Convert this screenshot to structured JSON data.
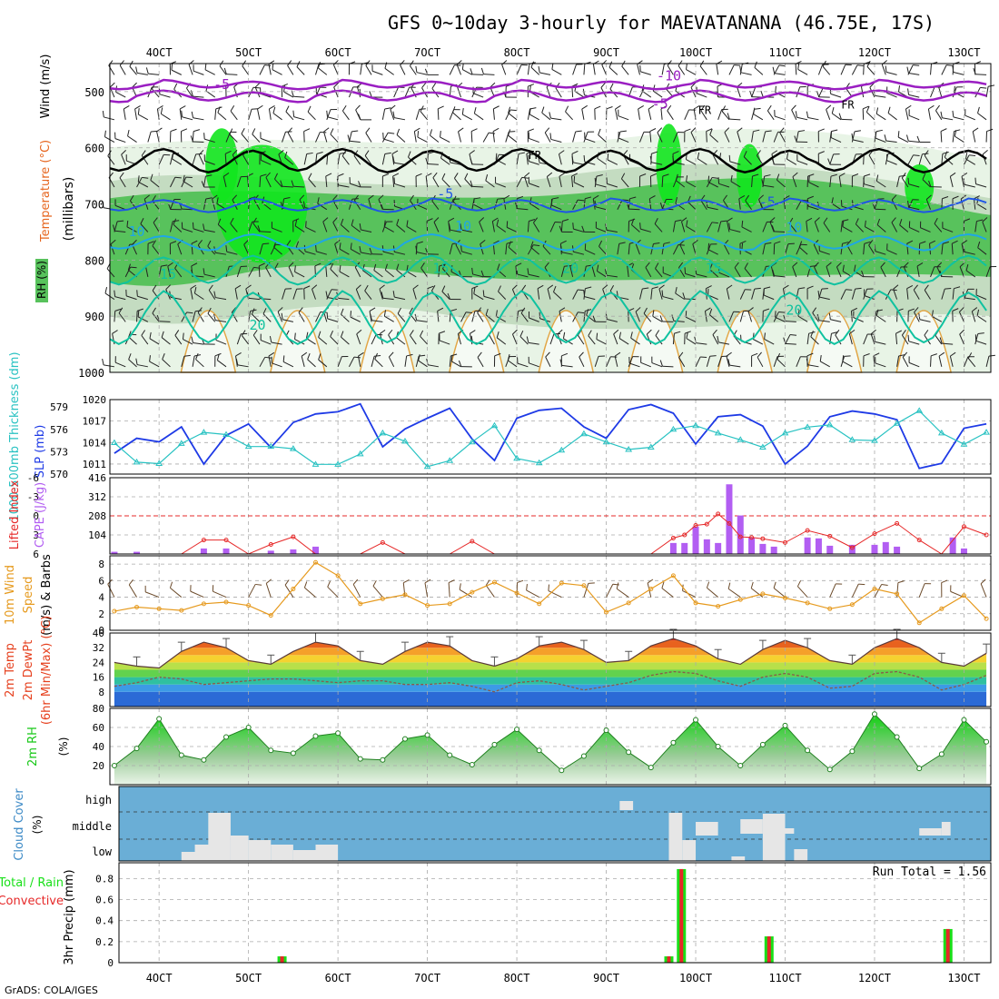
{
  "title": "GFS 0~10day 3-hourly for MAEVATANANA (46.75E, 17S)",
  "credit": "GrADS: COLA/IGES",
  "time_axis": {
    "labels": [
      "4OCT",
      "5OCT",
      "6OCT",
      "7OCT",
      "8OCT",
      "9OCT",
      "10OCT",
      "11OCT",
      "12OCT",
      "13OCT"
    ],
    "range_days": [
      3.45,
      13.3
    ]
  },
  "colors": {
    "rh_light": "#e8f4e6",
    "rh_mid": "#c4dcc1",
    "rh_gray": "#a9c0a6",
    "rh_green": "#58c25c",
    "rh_bright": "#12e61e",
    "temp_cold": "#9a1ec2",
    "temp_cool": "#1e55e6",
    "temp_mild": "#1ea7e6",
    "temp_warm": "#10c2a0",
    "temp_hot": "#e69a1e",
    "slp": "#1e3ae6",
    "thickness": "#28c2c2",
    "cape": "#b25ef2",
    "lifted_index": "#e62828",
    "wind10m": "#e69a1e",
    "rh2m": "#18c818",
    "cloud_bg": "#6aaed6",
    "cloud_fill": "#e6e6e6",
    "precip_total": "#18e018",
    "precip_conv": "#e62828"
  },
  "chart_data": [
    {
      "type": "heatmap",
      "id": "upper_air",
      "ylabel": "(millibars)",
      "ylabels": [
        "Wind (m/s)",
        "Temperature (°C)",
        "RH (%)"
      ],
      "y_ticks": [
        500,
        600,
        700,
        800,
        900,
        1000
      ],
      "ylim": [
        1000,
        450
      ],
      "isotherm_labels": [
        "-10",
        "-5",
        "0",
        "5",
        "10",
        "15",
        "20"
      ],
      "freezing_label": "FR",
      "rh_labels": [
        "10",
        "30",
        "50"
      ]
    },
    {
      "type": "line",
      "id": "slp_thickness",
      "ylabels": [
        "1000-500mb Thickness (dm)",
        "SLP (mb)"
      ],
      "y_ticks_left": [
        570,
        573,
        576,
        579
      ],
      "y_ticks_right": [
        1011,
        1014,
        1017,
        1020
      ],
      "ylim_left": [
        570,
        580
      ],
      "ylim_right": [
        1009.6,
        1020
      ],
      "series": [
        {
          "name": "SLP (mb)",
          "axis": "right",
          "x": [
            3.5,
            3.75,
            4.0,
            4.25,
            4.5,
            4.75,
            5.0,
            5.25,
            5.5,
            5.75,
            6.0,
            6.25,
            6.5,
            6.75,
            7.0,
            7.25,
            7.5,
            7.75,
            8.0,
            8.25,
            8.5,
            8.75,
            9.0,
            9.25,
            9.5,
            9.75,
            10.0,
            10.25,
            10.5,
            10.75,
            11.0,
            11.25,
            11.5,
            11.75,
            12.0,
            12.25,
            12.5,
            12.75,
            13.0,
            13.25
          ],
          "values": [
            1012.5,
            1014.6,
            1014.1,
            1016.2,
            1011.0,
            1015.0,
            1016.6,
            1013.3,
            1016.8,
            1018.0,
            1018.3,
            1019.4,
            1013.4,
            1015.9,
            1017.4,
            1018.8,
            1014.5,
            1011.5,
            1017.4,
            1018.5,
            1018.8,
            1016.2,
            1014.6,
            1018.6,
            1019.3,
            1018.1,
            1013.8,
            1017.6,
            1017.9,
            1016.3,
            1011.0,
            1013.5,
            1017.6,
            1018.4,
            1018.0,
            1017.2,
            1010.4,
            1011.1,
            1016.0,
            1016.6
          ]
        },
        {
          "name": "1000-500mb Thickness (dm)",
          "axis": "left",
          "x": [
            3.5,
            3.75,
            4.0,
            4.25,
            4.5,
            4.75,
            5.0,
            5.25,
            5.5,
            5.75,
            6.0,
            6.25,
            6.5,
            6.75,
            7.0,
            7.25,
            7.5,
            7.75,
            8.0,
            8.25,
            8.5,
            8.75,
            9.0,
            9.25,
            9.5,
            9.75,
            10.0,
            10.25,
            10.5,
            10.75,
            11.0,
            11.25,
            11.5,
            11.75,
            12.0,
            12.25,
            12.5,
            12.75,
            13.0,
            13.25
          ],
          "values": [
            574.2,
            571.6,
            571.4,
            574.1,
            575.6,
            575.3,
            573.7,
            573.7,
            573.4,
            571.3,
            571.3,
            572.7,
            575.5,
            574.4,
            571.0,
            571.8,
            574.3,
            576.5,
            572.1,
            571.5,
            573.2,
            575.4,
            574.3,
            573.3,
            573.6,
            576.0,
            576.5,
            575.5,
            574.6,
            573.6,
            575.5,
            576.3,
            576.6,
            574.6,
            574.5,
            576.8,
            578.5,
            575.5,
            574.0,
            575.6
          ]
        }
      ]
    },
    {
      "type": "bar",
      "id": "cape_li",
      "ylabels": [
        "Lifted Index",
        "CAPE (J/kg)"
      ],
      "y_ticks_left": [
        -6,
        -3,
        0,
        3,
        6
      ],
      "y_tick_labels_left": [
        "-6",
        "-3",
        "0",
        "3",
        "6"
      ],
      "y_ticks_right": [
        104,
        208,
        312,
        416
      ],
      "ylim_cape": [
        0,
        416
      ],
      "ylim_li": [
        6,
        -6
      ],
      "series": [
        {
          "name": "CAPE (J/kg)",
          "x": [
            3.5,
            3.75,
            4.5,
            4.75,
            5.25,
            5.5,
            5.75,
            9.75,
            9.875,
            10.0,
            10.125,
            10.25,
            10.375,
            10.5,
            10.625,
            10.75,
            10.875,
            11.25,
            11.375,
            11.5,
            11.75,
            12.0,
            12.125,
            12.25,
            12.875,
            13.0
          ],
          "values": [
            12,
            12,
            30,
            30,
            18,
            25,
            40,
            60,
            60,
            150,
            80,
            60,
            380,
            210,
            90,
            55,
            40,
            90,
            85,
            45,
            50,
            50,
            65,
            40,
            90,
            30
          ]
        },
        {
          "name": "Lifted Index",
          "x": [
            3.5,
            3.75,
            4.0,
            4.25,
            4.5,
            4.75,
            5.0,
            5.25,
            5.5,
            5.75,
            6.0,
            6.25,
            6.5,
            6.75,
            7.0,
            7.25,
            7.5,
            7.75,
            8.0,
            8.25,
            8.5,
            8.75,
            9.0,
            9.25,
            9.5,
            9.75,
            9.875,
            10.0,
            10.125,
            10.25,
            10.375,
            10.5,
            10.625,
            10.75,
            11.0,
            11.25,
            11.5,
            11.75,
            12.0,
            12.25,
            12.5,
            12.75,
            13.0,
            13.25
          ],
          "values": [
            6,
            6,
            6,
            6,
            3.8,
            3.8,
            6,
            4.5,
            3.3,
            6,
            6,
            6,
            4.2,
            6,
            6,
            6,
            4.0,
            6,
            6,
            6,
            6,
            6,
            6,
            6,
            6,
            3.5,
            3,
            1.5,
            1.3,
            -0.3,
            1.2,
            3.3,
            3.4,
            3.6,
            4.2,
            2.3,
            3.2,
            5.0,
            2.8,
            1.2,
            3.8,
            6,
            1.7,
            3.0
          ]
        }
      ]
    },
    {
      "type": "line",
      "id": "wind10m",
      "ylabels": [
        "10m Wind Speed (m/s) & Barbs"
      ],
      "y_ticks": [
        0,
        2,
        4,
        6,
        8
      ],
      "ylim": [
        0,
        9
      ],
      "series": [
        {
          "name": "10m Wind Speed",
          "x": [
            3.5,
            3.75,
            4.0,
            4.25,
            4.5,
            4.75,
            5.0,
            5.25,
            5.5,
            5.75,
            6.0,
            6.25,
            6.5,
            6.75,
            7.0,
            7.25,
            7.5,
            7.75,
            8.0,
            8.25,
            8.5,
            8.75,
            9.0,
            9.25,
            9.5,
            9.75,
            10.0,
            10.25,
            10.5,
            10.75,
            11.0,
            11.25,
            11.5,
            11.75,
            12.0,
            12.25,
            12.5,
            12.75,
            13.0,
            13.25
          ],
          "values": [
            2.3,
            2.8,
            2.6,
            2.4,
            3.2,
            3.4,
            3.0,
            1.8,
            5.0,
            8.2,
            6.6,
            3.2,
            3.8,
            4.3,
            3.0,
            3.2,
            4.6,
            5.8,
            4.5,
            3.2,
            5.7,
            5.4,
            2.2,
            3.3,
            5.0,
            6.6,
            3.3,
            2.9,
            3.7,
            4.4,
            3.9,
            3.3,
            2.6,
            3.1,
            5.0,
            4.4,
            0.9,
            2.6,
            4.2,
            1.4
          ]
        }
      ]
    },
    {
      "type": "area",
      "id": "temp2m",
      "ylabels": [
        "2m Temp",
        "2m DewPt",
        "(6hr Min/Max) (°C)"
      ],
      "y_ticks": [
        8,
        16,
        24,
        32,
        40
      ],
      "ylim": [
        0,
        40
      ],
      "series": [
        {
          "name": "2m Temp",
          "x": [
            3.5,
            3.75,
            4.0,
            4.25,
            4.5,
            4.75,
            5.0,
            5.25,
            5.5,
            5.75,
            6.0,
            6.25,
            6.5,
            6.75,
            7.0,
            7.25,
            7.5,
            7.75,
            8.0,
            8.25,
            8.5,
            8.75,
            9.0,
            9.25,
            9.5,
            9.75,
            10.0,
            10.25,
            10.5,
            10.75,
            11.0,
            11.25,
            11.5,
            11.75,
            12.0,
            12.25,
            12.5,
            12.75,
            13.0,
            13.25
          ],
          "values": [
            24,
            22,
            21,
            30,
            35,
            32,
            25,
            23,
            30,
            35,
            33,
            25,
            23,
            30,
            35,
            33,
            25,
            22,
            26,
            33,
            35,
            31,
            24,
            25,
            33,
            37,
            33,
            26,
            23,
            31,
            36,
            32,
            25,
            23,
            32,
            37,
            32,
            24,
            22,
            29
          ]
        },
        {
          "name": "2m DewPt",
          "x": [
            3.5,
            3.75,
            4.0,
            4.25,
            4.5,
            4.75,
            5.0,
            5.25,
            5.5,
            5.75,
            6.0,
            6.25,
            6.5,
            6.75,
            7.0,
            7.25,
            7.5,
            7.75,
            8.0,
            8.25,
            8.5,
            8.75,
            9.0,
            9.25,
            9.5,
            9.75,
            10.0,
            10.25,
            10.5,
            10.75,
            11.0,
            11.25,
            11.5,
            11.75,
            12.0,
            12.25,
            12.5,
            12.75,
            13.0,
            13.25
          ],
          "values": [
            11,
            13,
            16,
            15,
            12,
            13,
            14,
            15,
            15,
            14,
            13,
            14,
            14,
            12,
            12,
            13,
            11,
            8,
            13,
            14,
            12,
            9,
            11,
            13,
            17,
            19,
            18,
            14,
            11,
            16,
            18,
            16,
            10,
            11,
            18,
            19,
            16,
            9,
            12,
            17
          ]
        }
      ]
    },
    {
      "type": "area",
      "id": "rh2m",
      "ylabels": [
        "2m RH",
        "(%)"
      ],
      "y_ticks": [
        20,
        40,
        60,
        80
      ],
      "ylim": [
        0,
        80
      ],
      "series": [
        {
          "name": "2m RH",
          "x": [
            3.5,
            3.75,
            4.0,
            4.25,
            4.5,
            4.75,
            5.0,
            5.25,
            5.5,
            5.75,
            6.0,
            6.25,
            6.5,
            6.75,
            7.0,
            7.25,
            7.5,
            7.75,
            8.0,
            8.25,
            8.5,
            8.75,
            9.0,
            9.25,
            9.5,
            9.75,
            10.0,
            10.25,
            10.5,
            10.75,
            11.0,
            11.25,
            11.5,
            11.75,
            12.0,
            12.25,
            12.5,
            12.75,
            13.0,
            13.25
          ],
          "values": [
            20,
            38,
            69,
            31,
            26,
            50,
            60,
            36,
            33,
            51,
            54,
            27,
            26,
            48,
            52,
            31,
            21,
            42,
            58,
            36,
            15,
            30,
            57,
            34,
            18,
            44,
            68,
            40,
            20,
            42,
            62,
            36,
            16,
            35,
            74,
            50,
            17,
            32,
            68,
            45
          ]
        }
      ]
    },
    {
      "type": "heatmap",
      "id": "cloud_cover",
      "ylabels": [
        "Cloud Cover",
        "(%)"
      ],
      "levels": [
        "high",
        "middle",
        "low"
      ]
    },
    {
      "type": "bar",
      "id": "precip",
      "ylabels": [
        "Total / Rain",
        "Convective",
        "3hr Precip (mm)"
      ],
      "y_ticks": [
        0,
        0.2,
        0.4,
        0.6,
        0.8
      ],
      "ylim": [
        0,
        0.95
      ],
      "annotation": "Run Total = 1.56",
      "series": [
        {
          "name": "Total",
          "x": [
            5.375,
            9.7,
            9.84,
            10.82,
            12.82
          ],
          "values": [
            0.06,
            0.06,
            0.89,
            0.25,
            0.32
          ]
        },
        {
          "name": "Convective",
          "x": [
            5.375,
            9.7,
            9.84,
            10.82,
            12.82
          ],
          "values": [
            0.06,
            0.06,
            0.89,
            0.25,
            0.32
          ]
        }
      ]
    }
  ]
}
